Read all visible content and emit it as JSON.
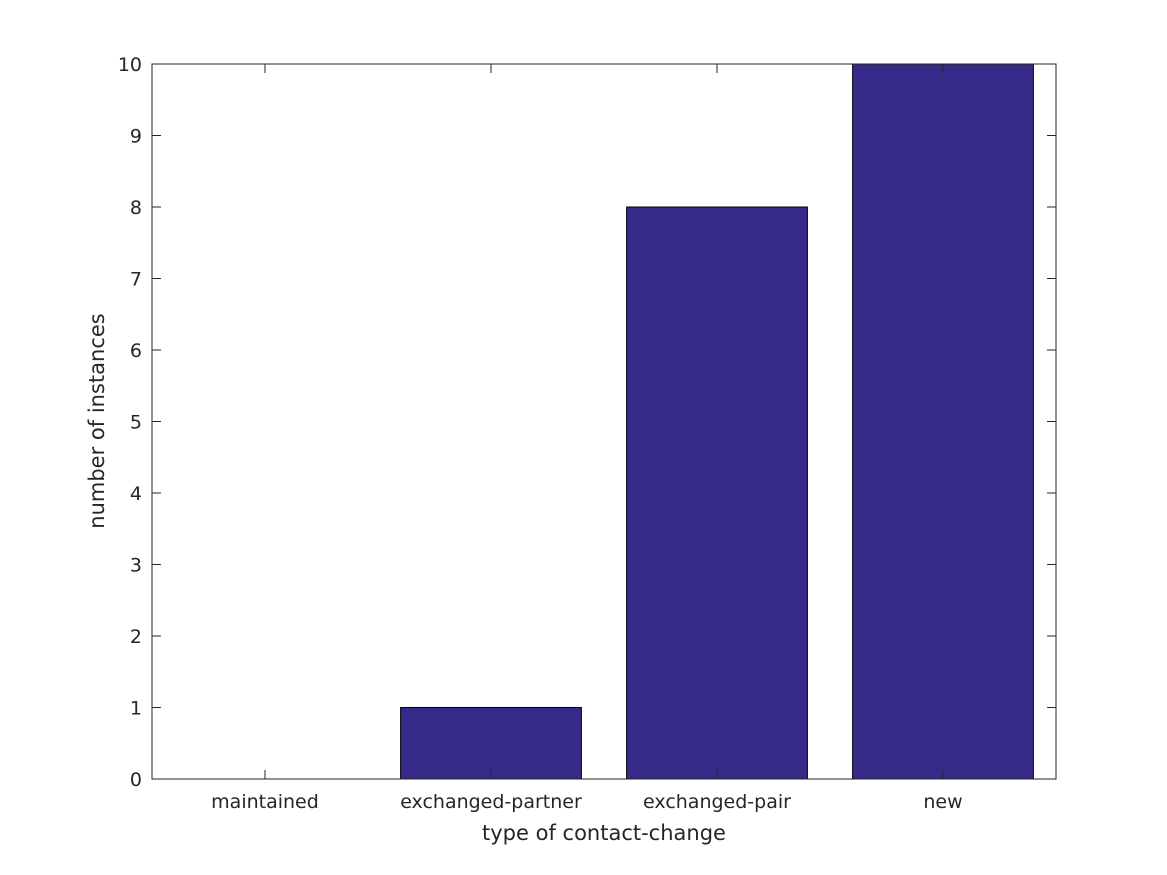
{
  "chart_data": {
    "type": "bar",
    "title": "",
    "xlabel": "type of contact-change",
    "ylabel": "number of instances",
    "categories": [
      "maintained",
      "exchanged-partner",
      "exchanged-pair",
      "new"
    ],
    "values": [
      0,
      1,
      8,
      10
    ],
    "ylim": [
      0,
      10
    ],
    "yticks": [
      "0",
      "1",
      "2",
      "3",
      "4",
      "5",
      "6",
      "7",
      "8",
      "9",
      "10"
    ],
    "grid": false,
    "legend": "none",
    "bar_color": "#352a87",
    "edge_color": "#000000"
  }
}
